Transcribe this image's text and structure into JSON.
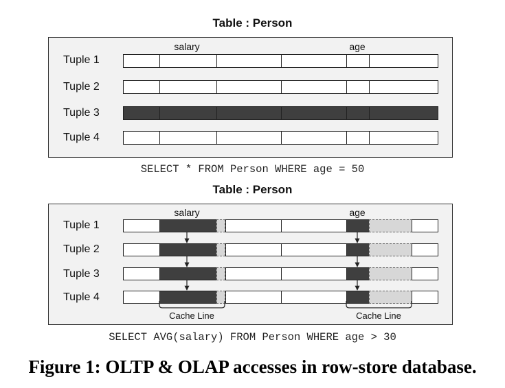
{
  "top": {
    "title": "Table : Person",
    "columns": {
      "salary": "salary",
      "age": "age"
    },
    "rows": [
      "Tuple 1",
      "Tuple 2",
      "Tuple 3",
      "Tuple 4"
    ],
    "highlighted_row": "Tuple 3",
    "query": "SELECT * FROM Person WHERE age = 50"
  },
  "bottom": {
    "title": "Table : Person",
    "columns": {
      "salary": "salary",
      "age": "age"
    },
    "rows": [
      "Tuple 1",
      "Tuple 2",
      "Tuple 3",
      "Tuple 4"
    ],
    "cache_line_labels": [
      "Cache Line",
      "Cache Line"
    ],
    "query": "SELECT AVG(salary) FROM Person WHERE age > 30"
  },
  "caption": "Figure 1: OLTP & OLAP accesses in row-store database.",
  "colors": {
    "dark": "#3f3f3f",
    "light": "#d7d7d7",
    "panel": "#f2f2f2"
  }
}
